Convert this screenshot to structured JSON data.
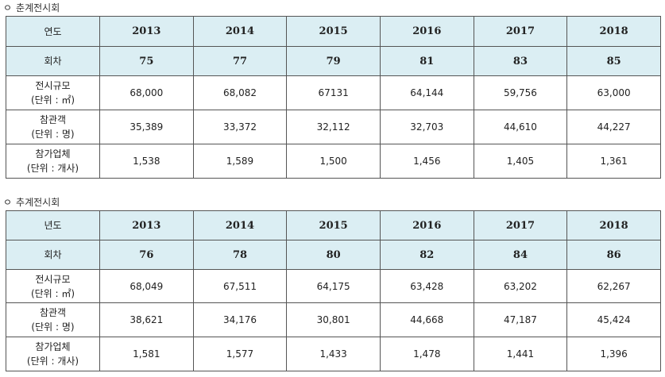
{
  "sections": [
    {
      "title": "춘계전시회",
      "bullet": "ㅇ",
      "years_label": "연도",
      "years": [
        "2013",
        "2014",
        "2015",
        "2016",
        "2017",
        "2018"
      ],
      "round_label": "회차",
      "rounds": [
        "75",
        "77",
        "79",
        "81",
        "83",
        "85"
      ],
      "rows": [
        {
          "label1": "전시규모",
          "label2": "(단위 : ㎡)",
          "values": [
            "68,000",
            "68,082",
            "67131",
            "64,144",
            "59,756",
            "63,000"
          ]
        },
        {
          "label1": "참관객",
          "label2": "(단위 : 명)",
          "values": [
            "35,389",
            "33,372",
            "32,112",
            "32,703",
            "44,610",
            "44,227"
          ]
        },
        {
          "label1": "참가업체",
          "label2": "(단위 : 개사)",
          "values": [
            "1,538",
            "1,589",
            "1,500",
            "1,456",
            "1,405",
            "1,361"
          ]
        }
      ]
    },
    {
      "title": "추계전시회",
      "bullet": "ㅇ",
      "years_label": "년도",
      "years": [
        "2013",
        "2014",
        "2015",
        "2016",
        "2017",
        "2018"
      ],
      "round_label": "회차",
      "rounds": [
        "76",
        "78",
        "80",
        "82",
        "84",
        "86"
      ],
      "rows": [
        {
          "label1": "전시규모",
          "label2": "(단위 : ㎡)",
          "values": [
            "68,049",
            "67,511",
            "64,175",
            "63,428",
            "63,202",
            "62,267"
          ]
        },
        {
          "label1": "참관객",
          "label2": "(단위 : 명)",
          "values": [
            "38,621",
            "34,176",
            "30,801",
            "44,668",
            "47,187",
            "45,424"
          ]
        },
        {
          "label1": "참가업체",
          "label2": "(단위 : 개사)",
          "values": [
            "1,581",
            "1,577",
            "1,433",
            "1,478",
            "1,441",
            "1,396"
          ]
        }
      ]
    }
  ],
  "colors": {
    "header_bg": "#dbeef3",
    "border": "#555555"
  }
}
